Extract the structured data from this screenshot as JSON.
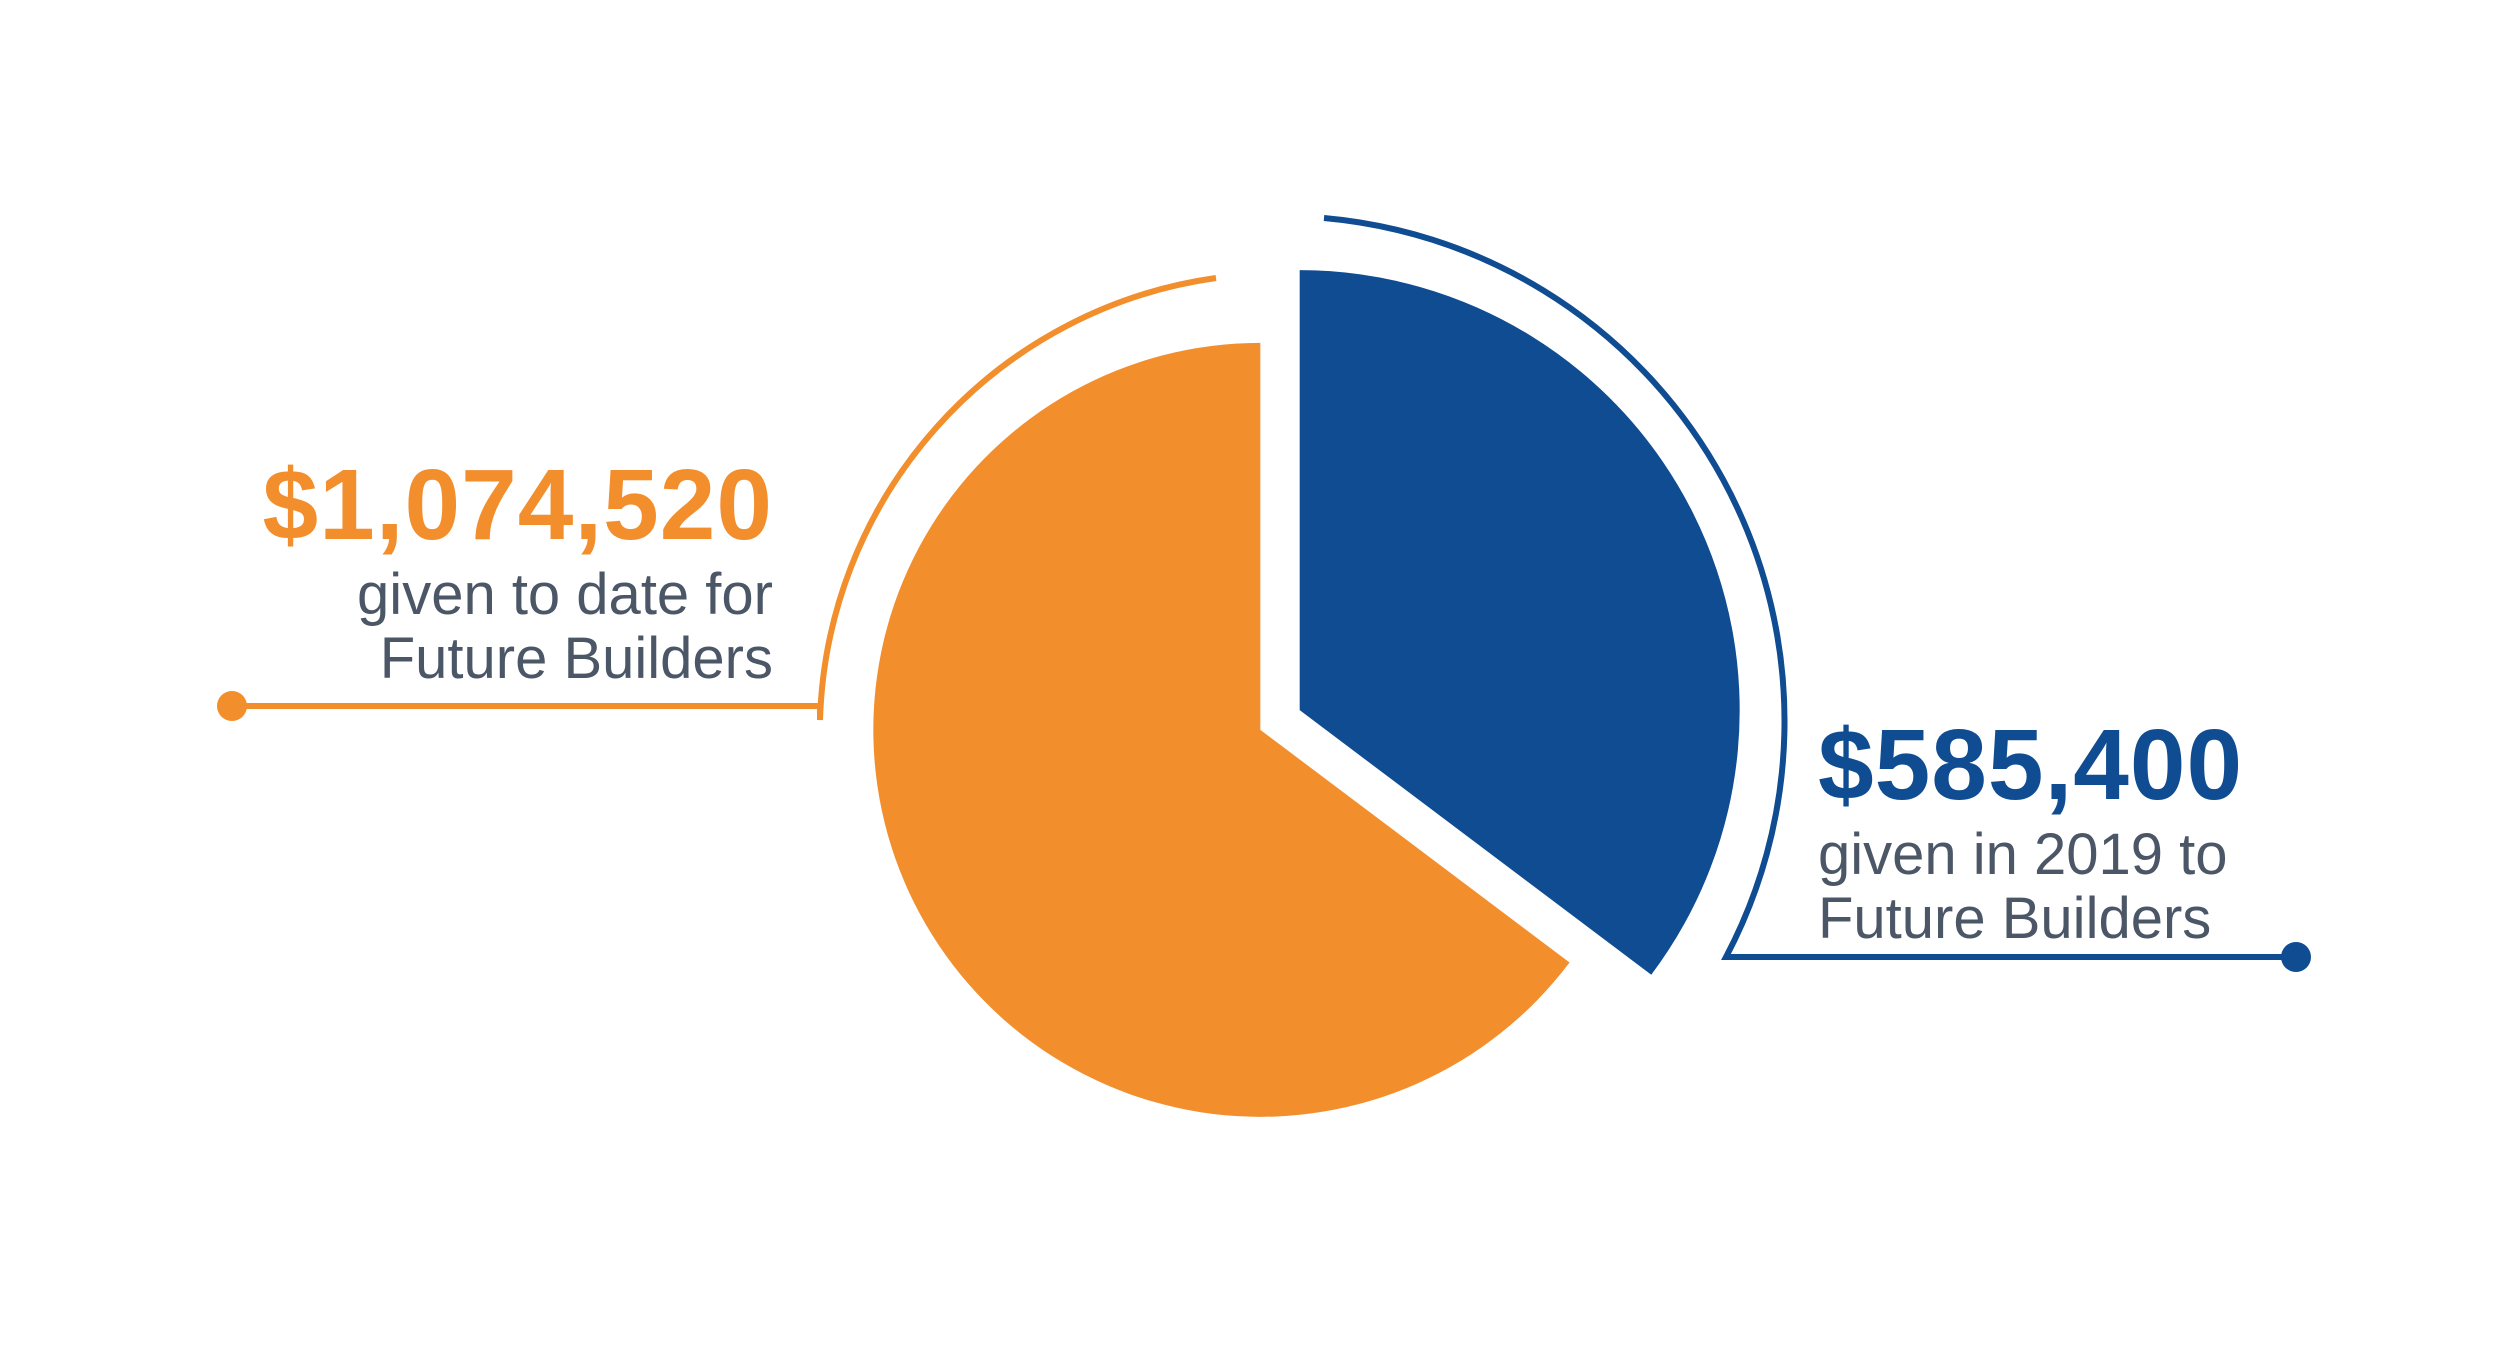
{
  "chart_data": {
    "type": "pie",
    "categories": [
      "given to date for Future Builders",
      "given in 2019 to Future Builders"
    ],
    "values": [
      1074520,
      585400
    ],
    "value_labels": [
      "$1,074,520",
      "$585,400"
    ],
    "colors": [
      "#f28e2c",
      "#0f4c92"
    ]
  }
}
